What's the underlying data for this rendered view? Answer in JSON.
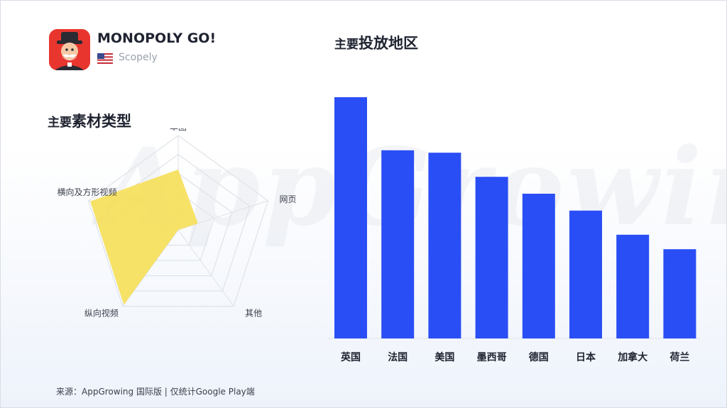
{
  "app": {
    "name": "MONOPOLY GO!",
    "publisher": "Scopely",
    "icon": "monopoly-man-icon",
    "flag": "us-flag-icon"
  },
  "colors": {
    "bar": "#2a4ef5",
    "radar_fill": "#f5df5a",
    "grid": "#dfe2e8"
  },
  "region_title": {
    "lead": "主要",
    "rest": "投放地区"
  },
  "material_title": {
    "lead": "主要",
    "rest": "素材类型"
  },
  "watermark": "AppGrowing",
  "source": "来源：AppGrowing 国际版 | 仅统计Google Play端",
  "chart_data": [
    {
      "type": "radar",
      "axes": [
        "单图",
        "网页",
        "其他",
        "纵向视频",
        "横向及方形视频"
      ],
      "values": [
        0.64,
        0.22,
        0.0,
        0.98,
        0.98
      ],
      "max": 1,
      "rings": 5
    },
    {
      "type": "bar",
      "categories": [
        "英国",
        "法国",
        "美国",
        "墨西哥",
        "德国",
        "日本",
        "加拿大",
        "荷兰"
      ],
      "values": [
        100,
        78,
        77,
        67,
        60,
        53,
        43,
        37
      ],
      "ylim": [
        0,
        100
      ]
    }
  ]
}
